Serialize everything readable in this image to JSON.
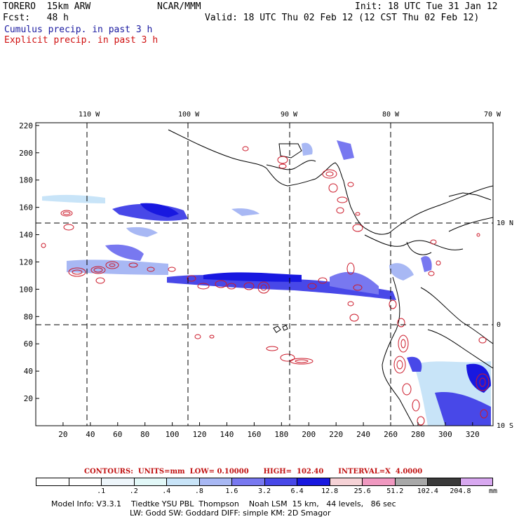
{
  "header": {
    "model": "TORERO  15km ARW",
    "center": "NCAR/MMM",
    "init": "Init: 18 UTC Tue 31 Jan 12",
    "fcst": "Fcst:   48 h",
    "valid": "Valid: 18 UTC Thu 02 Feb 12 (12 CST Thu 02 Feb 12)",
    "field1": "Cumulus precip. in past 3 h",
    "field2": "Explicit precip. in past 3 h"
  },
  "colors": {
    "field1": "#1a1aa0",
    "field2": "#d01010",
    "coast": "#000000",
    "grid": "#000000",
    "contour": "#cc1a2a"
  },
  "map": {
    "lon_labels": [
      "110 W",
      "100 W",
      "90 W",
      "80 W",
      "70 W"
    ],
    "lat_labels": [
      "10 N",
      "0",
      "10 S"
    ],
    "x_ticks": [
      "20",
      "40",
      "60",
      "80",
      "100",
      "120",
      "140",
      "160",
      "180",
      "200",
      "220",
      "240",
      "260",
      "280",
      "300",
      "320"
    ],
    "y_ticks": [
      "20",
      "40",
      "60",
      "80",
      "100",
      "120",
      "140",
      "160",
      "180",
      "200",
      "220"
    ],
    "x_range": [
      0,
      335
    ],
    "y_range": [
      0,
      222
    ]
  },
  "contours": {
    "label": "CONTOURS:",
    "units": "UNITS=mm",
    "low": "LOW= 0.10000",
    "high": "HIGH=  102.40",
    "interval": "INTERVAL=X  4.0000"
  },
  "scale": {
    "colors": [
      "#ffffff",
      "#ffffff",
      "#eef6fb",
      "#e2f8f8",
      "#c8e4f8",
      "#a8b8f4",
      "#7878f0",
      "#4848e8",
      "#1818e0",
      "#f6d2d6",
      "#f098c0",
      "#a8a8a8",
      "#3a3a3a",
      "#d8a8f0"
    ],
    "labels": [
      ".1",
      ".2",
      ".4",
      ".8",
      "1.6",
      "3.2",
      "6.4",
      "12.8",
      "25.6",
      "51.2",
      "102.4",
      "204.8"
    ],
    "unit": "mm"
  },
  "footer": {
    "line1": "Model Info: V3.3.1    Tiedtke YSU PBL  Thompson    Noah LSM  15 km,   44 levels,   86 sec",
    "line2": "LW: Godd SW: Goddard DIFF: simple KM: 2D Smagor"
  }
}
